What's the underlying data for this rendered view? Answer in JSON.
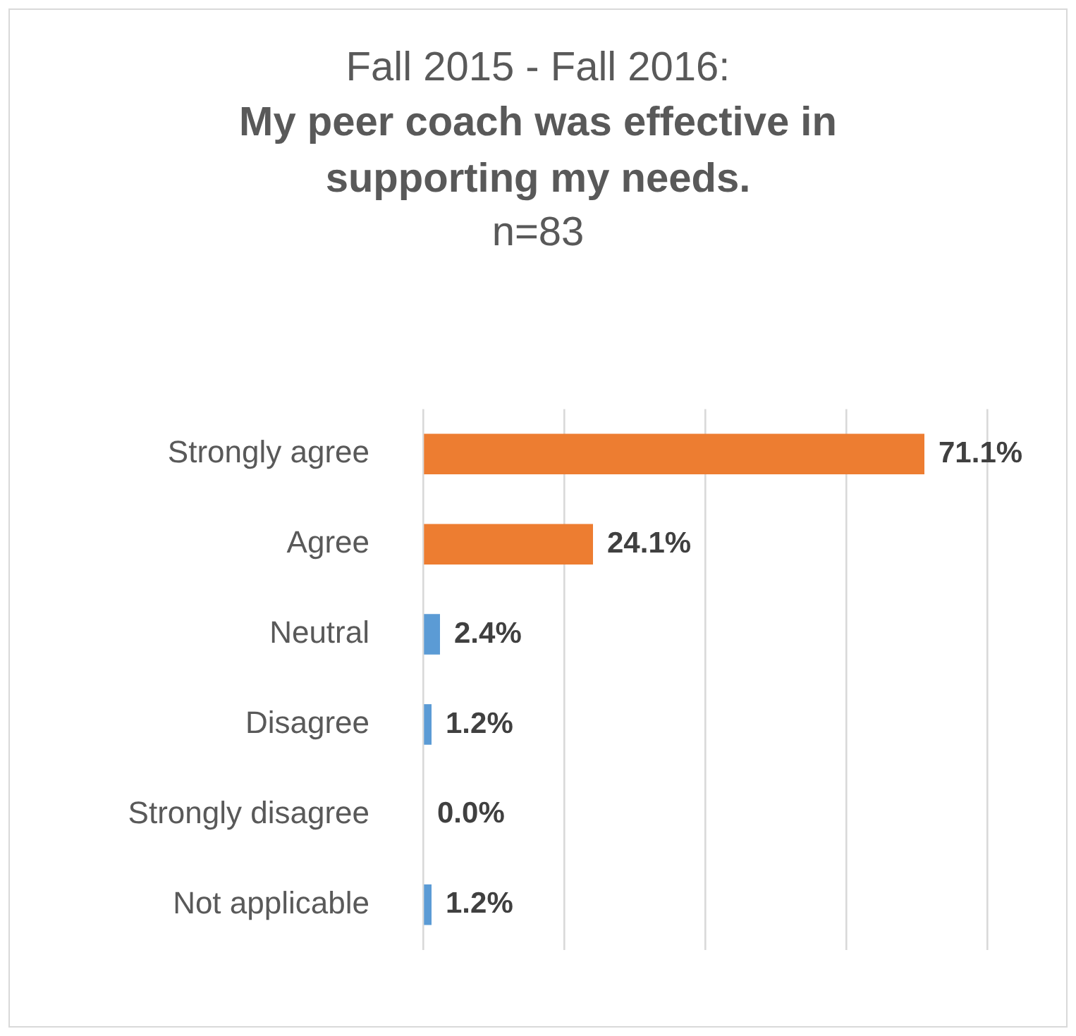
{
  "chart_data": {
    "type": "bar",
    "orientation": "horizontal",
    "title": "Fall 2015 - Fall 2016:",
    "subtitle": "My peer coach was effective in supporting my needs.",
    "annotations": [
      "n=83"
    ],
    "categories": [
      "Strongly agree",
      "Agree",
      "Neutral",
      "Disagree",
      "Strongly disagree",
      "Not applicable"
    ],
    "values": [
      71.1,
      24.1,
      2.4,
      1.2,
      0.0,
      1.2
    ],
    "colors": [
      "#ed7d31",
      "#ed7d31",
      "#5b9bd5",
      "#5b9bd5",
      "#5b9bd5",
      "#5b9bd5"
    ],
    "value_labels": [
      "71.1%",
      "24.1%",
      "2.4%",
      "1.2%",
      "0.0%",
      "1.2%"
    ],
    "xlim": [
      0,
      80
    ],
    "xticks": [
      {
        "value": 0,
        "label": null
      },
      {
        "value": 20,
        "label": null
      },
      {
        "value": 40,
        "label": null
      },
      {
        "value": 60,
        "label": null
      },
      {
        "value": 80,
        "label": null
      }
    ],
    "grid": "x",
    "tick_labels": "y"
  }
}
